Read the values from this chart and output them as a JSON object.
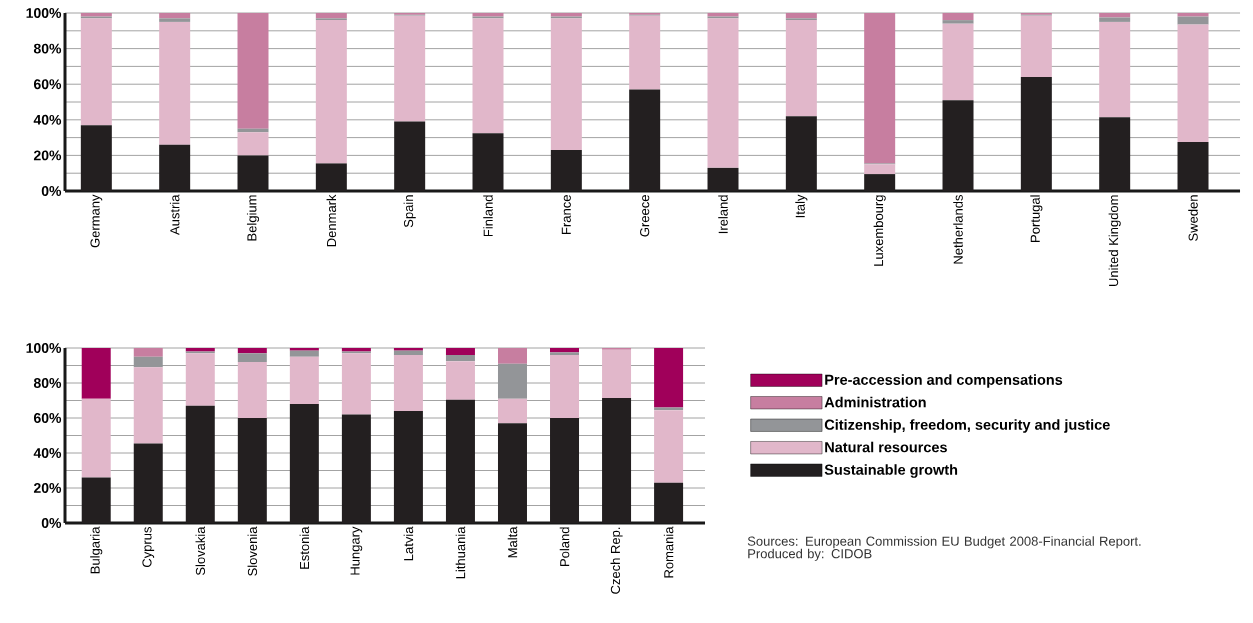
{
  "chart_data": [
    {
      "type": "bar",
      "stacked": true,
      "grid": "y",
      "categories": [
        "Germany",
        "Austria",
        "Belgium",
        "Denmark",
        "Spain",
        "Finland",
        "France",
        "Greece",
        "Ireland",
        "Italy",
        "Luxembourg",
        "Netherlands",
        "Portugal",
        "United Kingdom",
        "Sweden"
      ],
      "series": [
        {
          "color": "#231f20",
          "values": [
            37,
            26,
            20,
            15.5,
            39,
            32.5,
            23,
            57,
            13,
            42,
            9.5,
            51,
            64,
            41.5,
            27.5
          ]
        },
        {
          "color": "#e1b7ca",
          "values": [
            60,
            69,
            13,
            80.5,
            59.5,
            64.5,
            74,
            41.5,
            84,
            54,
            5.5,
            43,
            34.5,
            53.5,
            66
          ]
        },
        {
          "color": "#939598",
          "values": [
            1,
            2,
            2,
            1,
            0.5,
            1,
            1,
            0.5,
            1,
            1,
            0.5,
            2,
            0.5,
            2.5,
            4.5
          ]
        },
        {
          "color": "#c77ea0",
          "values": [
            2,
            3,
            65,
            3,
            1,
            2,
            2,
            1,
            2,
            3,
            84.5,
            4,
            1,
            2.5,
            2
          ]
        }
      ],
      "ylim": [
        0,
        100
      ],
      "yticks": [
        {
          "value": 0,
          "label": "0%"
        },
        {
          "value": 10,
          "label": null
        },
        {
          "value": 20,
          "label": "20%"
        },
        {
          "value": 30,
          "label": null
        },
        {
          "value": 40,
          "label": "40%"
        },
        {
          "value": 50,
          "label": null
        },
        {
          "value": 60,
          "label": "60%"
        },
        {
          "value": 70,
          "label": null
        },
        {
          "value": 80,
          "label": "80%"
        },
        {
          "value": 90,
          "label": null
        },
        {
          "value": 100,
          "label": "100%"
        }
      ]
    },
    {
      "type": "bar",
      "stacked": true,
      "grid": "y",
      "legend": "right",
      "categories": [
        "Bulgaria",
        "Cyprus",
        "Slovakia",
        "Slovenia",
        "Estonia",
        "Hungary",
        "Latvia",
        "Lithuania",
        "Malta",
        "Poland",
        "Czech Rep.",
        "Romania"
      ],
      "series": [
        {
          "name": "Sustainable growth",
          "color": "#231f20",
          "values": [
            26,
            45.5,
            67,
            60,
            68,
            62,
            64,
            70.5,
            57,
            60,
            71.5,
            23
          ]
        },
        {
          "name": "Natural resources",
          "color": "#e1b7ca",
          "values": [
            45,
            43.5,
            30,
            32,
            27,
            35,
            32,
            22,
            14,
            36,
            27.5,
            41.5
          ]
        },
        {
          "name": "Citizenship, freedom, security and justice",
          "color": "#939598",
          "values": [
            0,
            6,
            1,
            5,
            3.5,
            1,
            2.5,
            3.5,
            20,
            1.5,
            0,
            1.5
          ]
        },
        {
          "name": "Administration",
          "color": "#c77ea0",
          "values": [
            0,
            5,
            0,
            0,
            0,
            0,
            0,
            0,
            9,
            0,
            1,
            0
          ]
        },
        {
          "name": "Pre-accession and compensations",
          "color": "#a0005a",
          "values": [
            29,
            0,
            2,
            3,
            1.5,
            2,
            1.5,
            4,
            0,
            2.5,
            0,
            34
          ]
        }
      ],
      "ylim": [
        0,
        100
      ],
      "yticks": [
        {
          "value": 0,
          "label": "0%"
        },
        {
          "value": 10,
          "label": null
        },
        {
          "value": 20,
          "label": "20%"
        },
        {
          "value": 30,
          "label": null
        },
        {
          "value": 40,
          "label": "40%"
        },
        {
          "value": 50,
          "label": null
        },
        {
          "value": 60,
          "label": "60%"
        },
        {
          "value": 70,
          "label": null
        },
        {
          "value": 80,
          "label": "80%"
        },
        {
          "value": 90,
          "label": null
        },
        {
          "value": 100,
          "label": "100%"
        }
      ],
      "annotations": [
        "Sources: European Commission EU Budget 2008-Financial Report.",
        "Produced by: CIDOB"
      ]
    }
  ]
}
